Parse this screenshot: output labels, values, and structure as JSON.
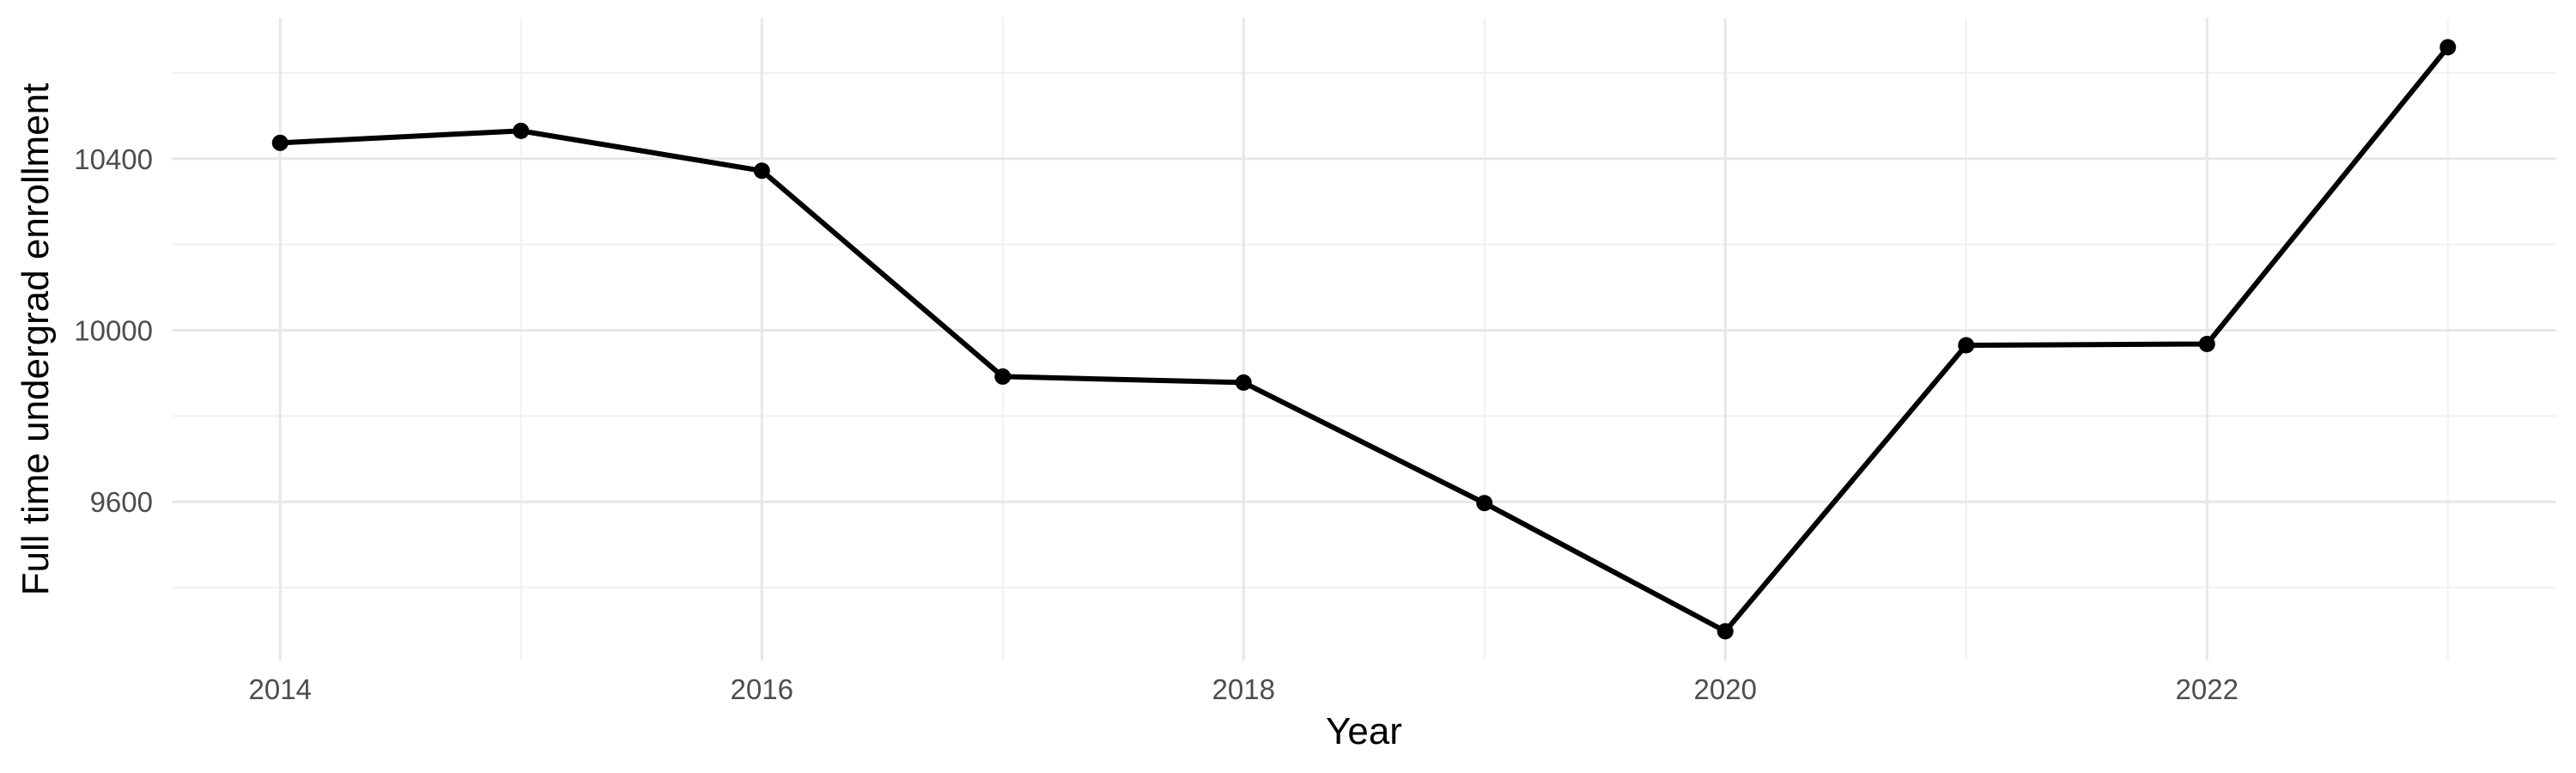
{
  "chart_data": {
    "type": "line",
    "title": "",
    "xlabel": "Year",
    "ylabel": "Full time undergrad enrollment",
    "x": [
      2014,
      2015,
      2016,
      2017,
      2018,
      2019,
      2020,
      2021,
      2022,
      2023
    ],
    "values": [
      10437,
      10465,
      10372,
      9892,
      9878,
      9597,
      9298,
      9965,
      9968,
      10660
    ],
    "series_name": "Full time undergrad enrollment",
    "x_major_ticks": [
      2014,
      2016,
      2018,
      2020,
      2022
    ],
    "x_major_labels": [
      "2014",
      "2016",
      "2018",
      "2020",
      "2022"
    ],
    "x_minor_ticks": [
      2015,
      2017,
      2019,
      2021,
      2023
    ],
    "y_major_ticks": [
      9600,
      10000,
      10400
    ],
    "y_major_labels": [
      "9600",
      "10000",
      "10400"
    ],
    "y_minor_ticks": [
      9400,
      9800,
      10200,
      10600
    ],
    "xlim": [
      2013.55,
      2023.45
    ],
    "ylim": [
      9230,
      10728
    ],
    "grid": "on",
    "legend": "none",
    "colors": {
      "line": "#000000",
      "point": "#000000",
      "grid_major": "#E7E7E7",
      "grid_minor": "#F1F1F1",
      "tick_label": "#4D4D4D",
      "axis_title": "#000000",
      "background": "#FFFFFF"
    }
  }
}
